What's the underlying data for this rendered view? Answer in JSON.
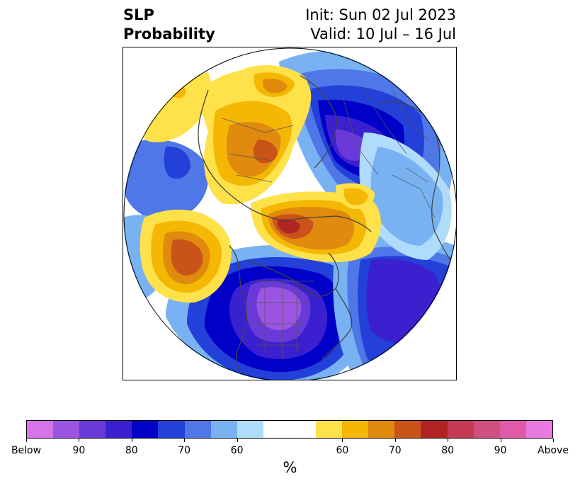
{
  "header": {
    "variable": "SLP",
    "product": "Probability",
    "init_label": "Init: Sun 02 Jul 2023",
    "valid_label": "Valid: 10 Jul – 16 Jul"
  },
  "colorbar": {
    "colors": [
      "#d673e8",
      "#9b55e2",
      "#6a3ad8",
      "#3a20cf",
      "#0000c8",
      "#2340d8",
      "#4f77e8",
      "#78b2f2",
      "#b0dcfb",
      "#ffffff",
      "#ffffff",
      "#ffe14a",
      "#f4b703",
      "#e08a0e",
      "#c95319",
      "#b22424",
      "#c63a55",
      "#d2507f",
      "#e05aa8",
      "#e97be0"
    ],
    "ticks": [
      "Below",
      "90",
      "80",
      "70",
      "60",
      "60",
      "70",
      "80",
      "90",
      "Above"
    ],
    "units": "%"
  },
  "map": {
    "projection": "north polar stereographic",
    "features": [
      "coastlines",
      "country borders",
      "state/province borders"
    ],
    "anomaly_regions": [
      {
        "name": "arctic-siberia-above",
        "category": "Above",
        "level": "60-80"
      },
      {
        "name": "north-atlantic-above",
        "category": "Above",
        "level": "60-80"
      },
      {
        "name": "greenland-above",
        "category": "Above",
        "level": "60-80"
      },
      {
        "name": "north-pacific-above",
        "category": "Above",
        "level": "60-75"
      },
      {
        "name": "north-america-below",
        "category": "Below",
        "level": "70-90"
      },
      {
        "name": "russia-below",
        "category": "Below",
        "level": "70-85"
      },
      {
        "name": "europe-below",
        "category": "Below",
        "level": "60-80"
      }
    ]
  }
}
